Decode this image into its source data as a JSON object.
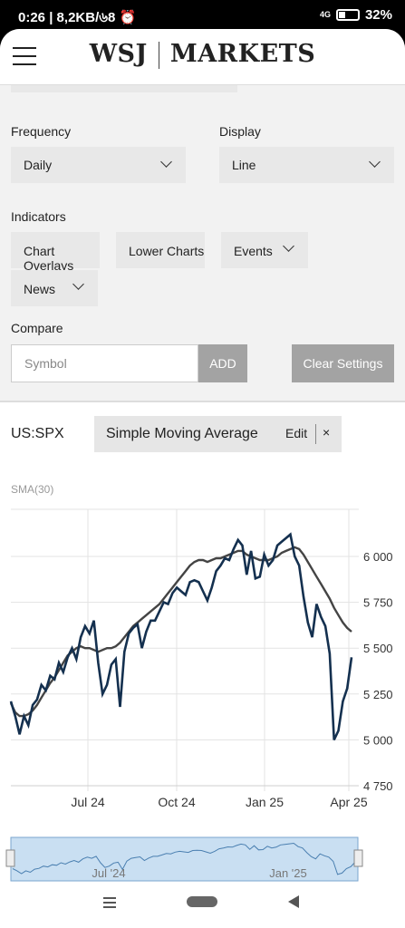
{
  "status_bar": {
    "time_info": "0:26 | 8,2KB/৬8 ⏰",
    "network": "4G",
    "battery": "32%"
  },
  "header": {
    "logo_left": "WSJ",
    "logo_right": "MARKETS"
  },
  "settings": {
    "frequency_label": "Frequency",
    "frequency_value": "Daily",
    "display_label": "Display",
    "display_value": "Line",
    "indicators_label": "Indicators",
    "chart_overlays": "Chart Overlays",
    "lower_charts": "Lower Charts",
    "events": "Events",
    "news": "News",
    "compare_label": "Compare",
    "symbol_placeholder": "Symbol",
    "add_label": "ADD",
    "clear_label": "Clear Settings"
  },
  "chart_header": {
    "ticker": "US:SPX",
    "indicator_name": "Simple Moving Average",
    "edit_label": "Edit",
    "close_label": "×"
  },
  "chart_data": {
    "type": "line",
    "legend_label": "SMA(30)",
    "y_ticks": [
      "6 000",
      "5 750",
      "5 500",
      "5 250",
      "5 000",
      "4 750"
    ],
    "y_tick_values": [
      6000,
      5750,
      5500,
      5250,
      5000,
      4750
    ],
    "ylim": [
      4750,
      6000
    ],
    "x_ticks": [
      "Jul 24",
      "Oct 24",
      "Jan 25",
      "Apr 25"
    ],
    "grid": true,
    "series": [
      {
        "values": [
          5210,
          5130,
          5030,
          5130,
          5080,
          5190,
          5220,
          5300,
          5270,
          5350,
          5330,
          5420,
          5370,
          5450,
          5500,
          5440,
          5560,
          5620,
          5580,
          5650,
          5420,
          5250,
          5300,
          5410,
          5440,
          5180,
          5480,
          5580,
          5610,
          5630,
          5500,
          5590,
          5650,
          5650,
          5700,
          5750,
          5740,
          5800,
          5830,
          5810,
          5790,
          5860,
          5870,
          5860,
          5810,
          5760,
          5830,
          5920,
          5950,
          5990,
          5980,
          6040,
          6090,
          6060,
          5900,
          6030,
          5880,
          5890,
          6010,
          5950,
          5980,
          6060,
          6080,
          6100,
          6120,
          6000,
          5950,
          5780,
          5640,
          5560,
          5740,
          5670,
          5620,
          5470,
          5000,
          5050,
          5210,
          5280,
          5450
        ]
      },
      {
        "values": [
          5200,
          5150,
          5130,
          5130,
          5140,
          5160,
          5190,
          5230,
          5270,
          5310,
          5340,
          5380,
          5420,
          5460,
          5480,
          5500,
          5510,
          5500,
          5500,
          5490,
          5480,
          5490,
          5500,
          5500,
          5510,
          5530,
          5560,
          5590,
          5620,
          5640,
          5660,
          5680,
          5700,
          5720,
          5740,
          5770,
          5800,
          5830,
          5860,
          5890,
          5920,
          5950,
          5970,
          5980,
          5980,
          5970,
          5980,
          5990,
          5990,
          6000,
          6010,
          6020,
          6030,
          6030,
          6010,
          6000,
          5990,
          5980,
          5980,
          5980,
          5990,
          6000,
          6020,
          6030,
          6040,
          6050,
          6040,
          6010,
          5970,
          5930,
          5890,
          5850,
          5810,
          5770,
          5720,
          5680,
          5640,
          5610,
          5590
        ]
      }
    ],
    "navigator": {
      "x_ticks": [
        "Jul '24",
        "Jan '25"
      ]
    }
  }
}
